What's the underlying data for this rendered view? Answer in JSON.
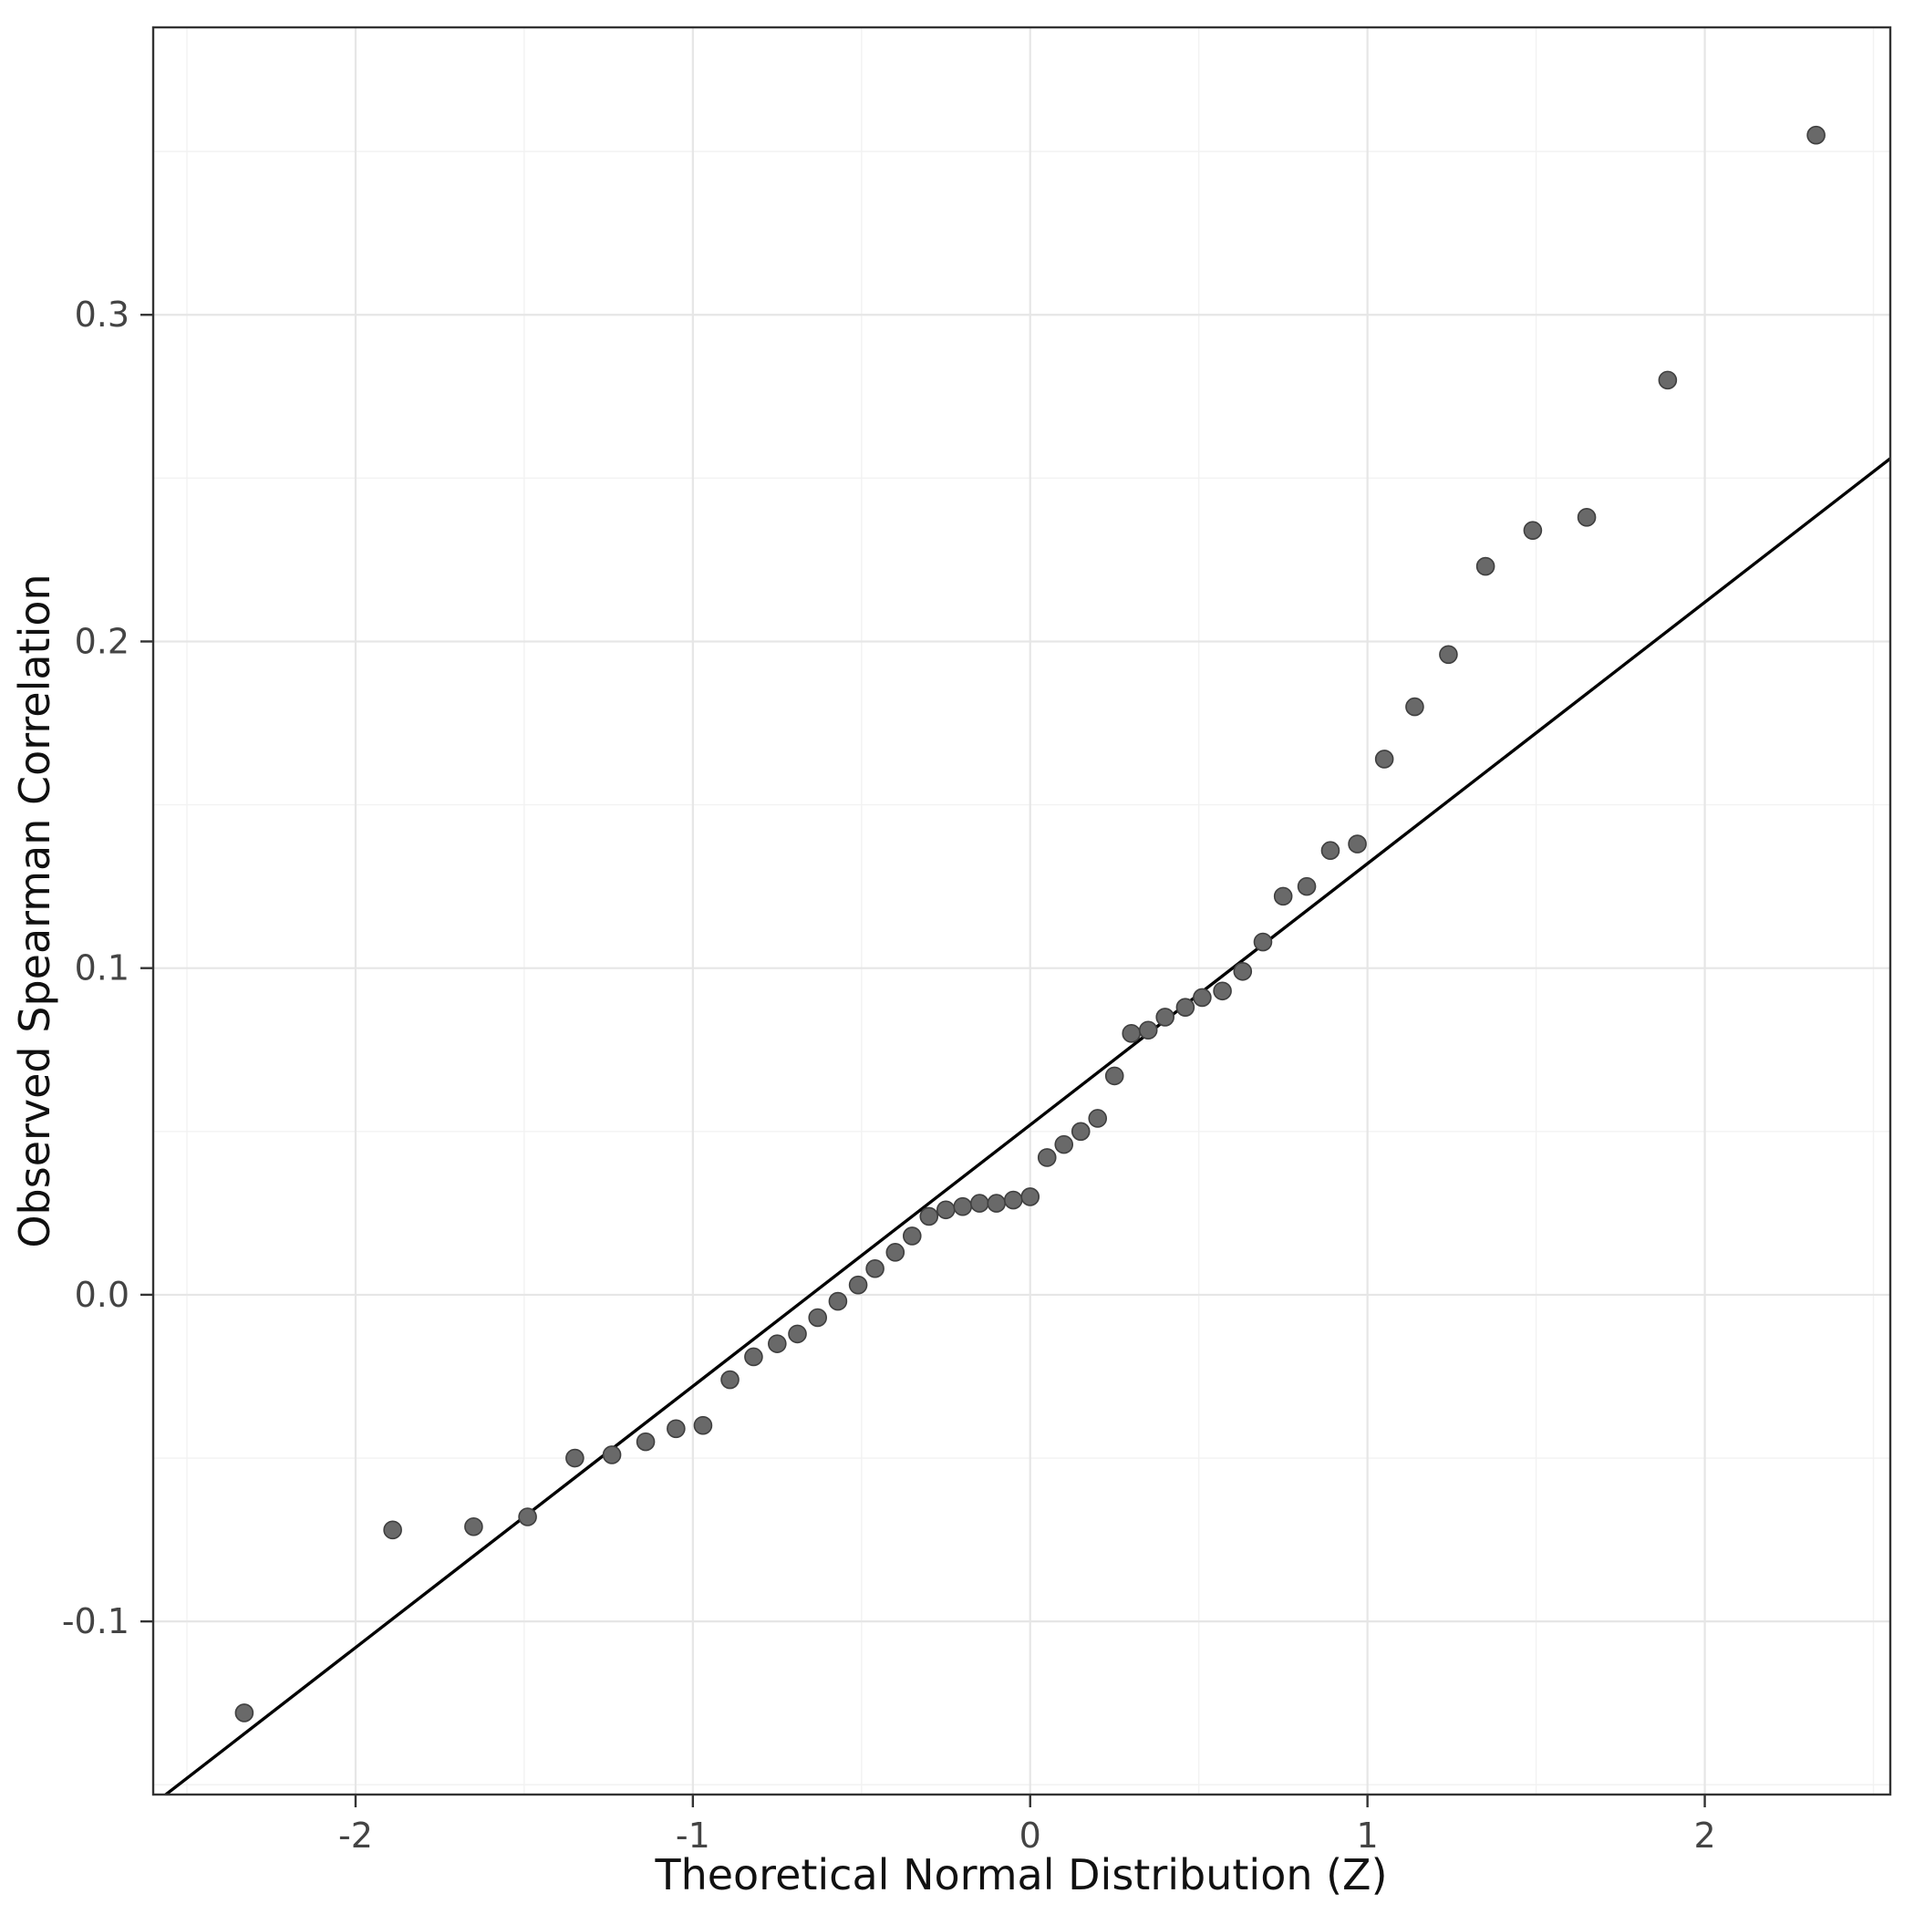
{
  "figure": {
    "background": "#ffffff",
    "panel_border_color": "#333333",
    "grid_major_color": "#e6e6e6",
    "grid_minor_color": "#f2f2f2",
    "point_fill": "#696969",
    "point_stroke": "#3f3f3f",
    "reference_line_color": "#000000"
  },
  "chart_data": {
    "type": "scatter",
    "title": "",
    "xlabel": "Theoretical Normal Distribution (Z)",
    "ylabel": "Observed Spearman Correlation",
    "xlim": [
      -2.6,
      2.55
    ],
    "ylim": [
      -0.153,
      0.388
    ],
    "x_ticks": [
      -2,
      -1,
      0,
      1,
      2
    ],
    "x_tick_labels": [
      "-2",
      "-1",
      "0",
      "1",
      "2"
    ],
    "y_ticks": [
      -0.1,
      0.0,
      0.1,
      0.2,
      0.3
    ],
    "y_tick_labels": [
      "-0.1",
      "0.0",
      "0.1",
      "0.2",
      "0.3"
    ],
    "grid": true,
    "legend": false,
    "series": [
      {
        "name": "observed-vs-theoretical-quantiles",
        "x": [
          -2.33,
          -1.89,
          -1.65,
          -1.49,
          -1.35,
          -1.24,
          -1.14,
          -1.05,
          -0.97,
          -0.89,
          -0.82,
          -0.75,
          -0.69,
          -0.63,
          -0.57,
          -0.51,
          -0.46,
          -0.4,
          -0.35,
          -0.3,
          -0.25,
          -0.2,
          -0.15,
          -0.1,
          -0.05,
          0.0,
          0.05,
          0.1,
          0.15,
          0.2,
          0.25,
          0.3,
          0.35,
          0.4,
          0.46,
          0.51,
          0.57,
          0.63,
          0.69,
          0.75,
          0.82,
          0.89,
          0.97,
          1.05,
          1.14,
          1.24,
          1.35,
          1.49,
          1.65,
          1.89,
          2.33
        ],
        "y": [
          -0.128,
          -0.072,
          -0.071,
          -0.068,
          -0.05,
          -0.049,
          -0.045,
          -0.041,
          -0.04,
          -0.026,
          -0.019,
          -0.015,
          -0.012,
          -0.007,
          -0.002,
          0.003,
          0.008,
          0.013,
          0.018,
          0.024,
          0.026,
          0.027,
          0.028,
          0.028,
          0.029,
          0.03,
          0.042,
          0.046,
          0.05,
          0.054,
          0.067,
          0.08,
          0.081,
          0.085,
          0.088,
          0.091,
          0.093,
          0.099,
          0.108,
          0.122,
          0.125,
          0.136,
          0.138,
          0.164,
          0.18,
          0.196,
          0.223,
          0.234,
          0.238,
          0.28,
          0.355
        ]
      }
    ],
    "reference_line": {
      "name": "qq-line",
      "intercept": 0.052,
      "slope": 0.08
    }
  }
}
